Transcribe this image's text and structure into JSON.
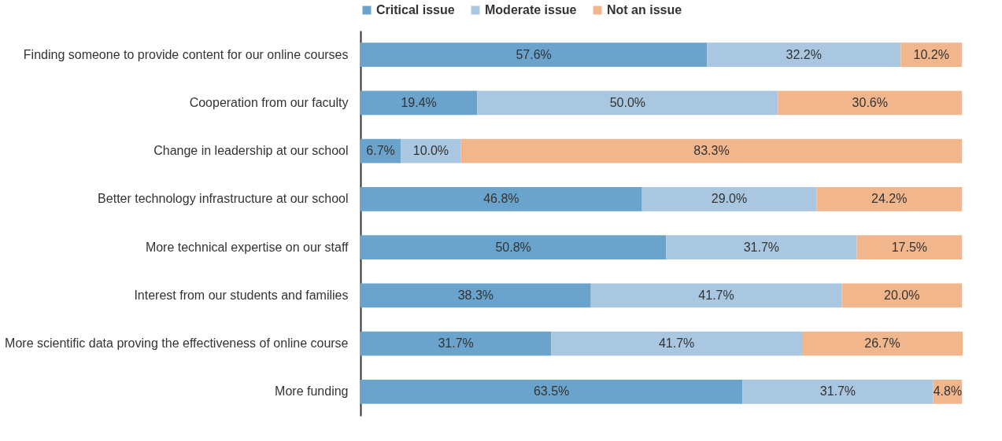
{
  "chart_data": {
    "type": "bar",
    "orientation": "horizontal",
    "stacked": true,
    "legend": "top",
    "tick_labels": "y",
    "grid": false,
    "xlim": [
      0,
      100.1
    ],
    "categories": [
      "Finding someone to provide content for our online courses",
      "Cooperation from our faculty",
      "Change in leadership at our school",
      "Better technology infrastructure at our school",
      "More technical expertise on our staff",
      "Interest from our students and families",
      "More scientific data proving the effectiveness of online course",
      "More funding"
    ],
    "series": [
      {
        "name": "Critical issue",
        "color": "#6aa3cb",
        "values": [
          57.6,
          19.4,
          6.7,
          46.8,
          50.8,
          38.3,
          31.7,
          63.5
        ],
        "value_labels": [
          "57.6%",
          "19.4%",
          "6.7%",
          "46.8%",
          "50.8%",
          "38.3%",
          "31.7%",
          "63.5%"
        ]
      },
      {
        "name": "Moderate issue",
        "color": "#a9c7e0",
        "values": [
          32.2,
          50.0,
          10.0,
          29.0,
          31.7,
          41.7,
          41.7,
          31.7
        ],
        "value_labels": [
          "32.2%",
          "50.0%",
          "10.0%",
          "29.0%",
          "31.7%",
          "41.7%",
          "41.7%",
          "31.7%"
        ]
      },
      {
        "name": "Not an issue",
        "color": "#f2b68c",
        "values": [
          10.2,
          30.6,
          83.3,
          24.2,
          17.5,
          20.0,
          26.7,
          4.8
        ],
        "value_labels": [
          "10.2%",
          "30.6%",
          "83.3%",
          "24.2%",
          "17.5%",
          "20.0%",
          "26.7%",
          "4.8%"
        ]
      }
    ]
  }
}
